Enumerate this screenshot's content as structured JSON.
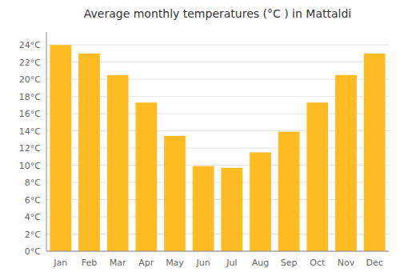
{
  "chart_data": {
    "type": "bar",
    "title": "Average monthly temperatures (°C ) in Mattaldi",
    "categories": [
      "Jan",
      "Feb",
      "Mar",
      "Apr",
      "May",
      "Jun",
      "Jul",
      "Aug",
      "Sep",
      "Oct",
      "Nov",
      "Dec"
    ],
    "values": [
      24.0,
      23.0,
      20.5,
      17.3,
      13.4,
      9.9,
      9.7,
      11.5,
      13.9,
      17.3,
      20.5,
      23.0
    ],
    "color": "#FFBB22",
    "ylim": [
      0,
      25.5
    ],
    "yticks": [
      {
        "value": 0,
        "label": "0°C"
      },
      {
        "value": 2,
        "label": "2°C"
      },
      {
        "value": 4,
        "label": "4°C"
      },
      {
        "value": 6,
        "label": "6°C"
      },
      {
        "value": 8,
        "label": "8°C"
      },
      {
        "value": 10,
        "label": "10°C"
      },
      {
        "value": 12,
        "label": "12°C"
      },
      {
        "value": 14,
        "label": "14°C"
      },
      {
        "value": 16,
        "label": "16°C"
      },
      {
        "value": 18,
        "label": "18°C"
      },
      {
        "value": 20,
        "label": "20°C"
      },
      {
        "value": 22,
        "label": "22°C"
      },
      {
        "value": 24,
        "label": "24°C"
      }
    ],
    "grid": true
  }
}
